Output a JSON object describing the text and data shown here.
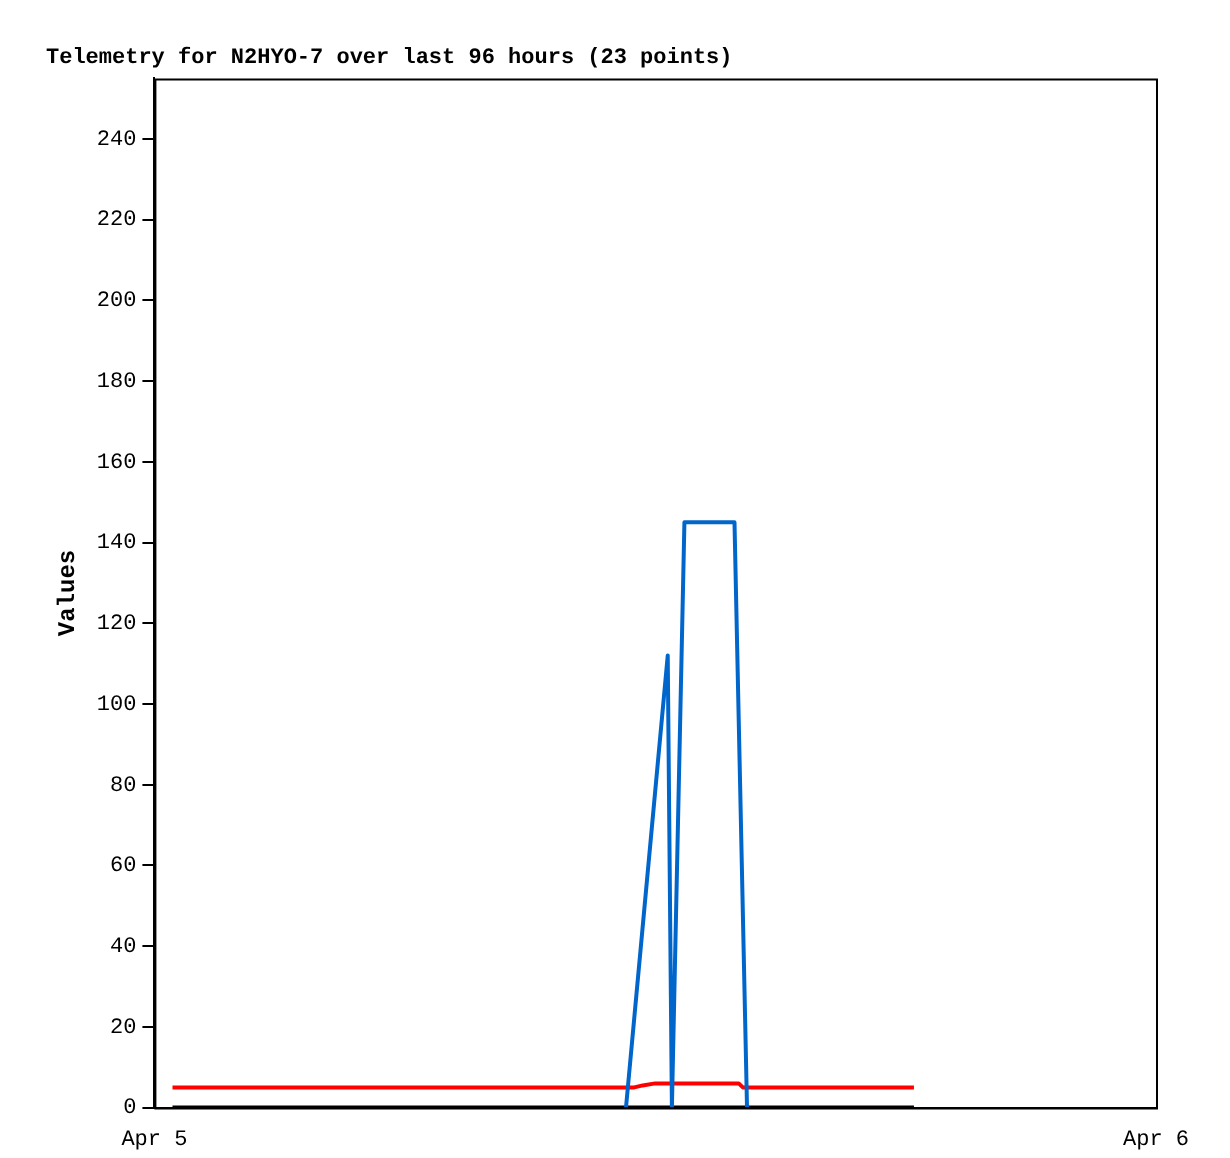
{
  "chart_data": {
    "type": "line",
    "title": "Telemetry for N2HYO-7 over last 96 hours (23 points)",
    "ylabel": "Values",
    "xlim": [
      "--04-05",
      "--04-06"
    ],
    "xticks": [
      {
        "value": "--04-05",
        "label": "Apr 5"
      },
      {
        "value": "--04-06",
        "label": "Apr 6"
      }
    ],
    "ylim": [
      0,
      255
    ],
    "yticks": [
      0,
      20,
      40,
      60,
      80,
      100,
      120,
      140,
      160,
      180,
      200,
      220,
      240
    ],
    "grid": false,
    "legend": false,
    "marker": "none",
    "line_style": "solid",
    "series": [
      {
        "color": "#0066cc",
        "x": [
          "--04-05T11:18",
          "--04-05T12:18",
          "--04-05T12:24",
          "--04-05T12:42",
          "--04-05T13:54",
          "--04-05T14:12"
        ],
        "values": [
          0,
          112,
          0,
          145,
          145,
          0
        ]
      },
      {
        "color": "#ff0000",
        "x": [
          "--04-05T00:26",
          "--04-05T11:30",
          "--04-05T11:42",
          "--04-05T12:00",
          "--04-05T14:00",
          "--04-05T14:06",
          "--04-05T18:12"
        ],
        "values": [
          5,
          5,
          5.5,
          6,
          6,
          5,
          5
        ]
      },
      {
        "color": "#000000",
        "x": [
          "--04-05T00:26",
          "--04-05T18:12"
        ],
        "values": [
          0,
          0
        ]
      }
    ]
  }
}
